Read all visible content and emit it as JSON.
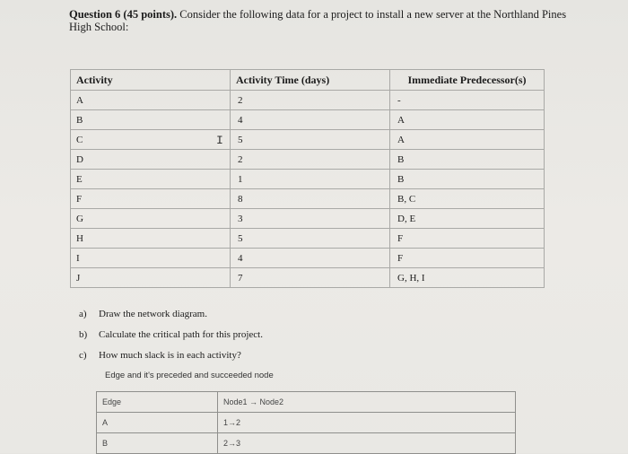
{
  "question": {
    "heading": "Question 6 (45 points).",
    "text": " Consider the following data for a project to install a new server at the Northland Pines High School:"
  },
  "activity_table": {
    "headers": [
      "Activity",
      "Activity Time (days)",
      "Immediate Predecessor(s)"
    ],
    "rows": [
      [
        "A",
        "2",
        "-"
      ],
      [
        "B",
        "4",
        "A"
      ],
      [
        "C",
        "5",
        "A"
      ],
      [
        "D",
        "2",
        "B"
      ],
      [
        "E",
        "1",
        "B"
      ],
      [
        "F",
        "8",
        "B, C"
      ],
      [
        "G",
        "3",
        "D, E"
      ],
      [
        "H",
        "5",
        "F"
      ],
      [
        "I",
        "4",
        "F"
      ],
      [
        "J",
        "7",
        "G, H, I"
      ]
    ]
  },
  "parts": [
    {
      "label": "a)",
      "text": "Draw the network diagram."
    },
    {
      "label": "b)",
      "text": "Calculate the critical path for this project."
    },
    {
      "label": "c)",
      "text": "How much slack is in each activity?"
    }
  ],
  "edge_caption": "Edge and it's preceded and succeeded node",
  "edge_table": {
    "headers": [
      "Edge",
      "Node1 → Node2"
    ],
    "rows": [
      [
        "A",
        "1→2"
      ],
      [
        "B",
        "2→3"
      ]
    ]
  },
  "cursor_icon": "text-cursor-icon"
}
